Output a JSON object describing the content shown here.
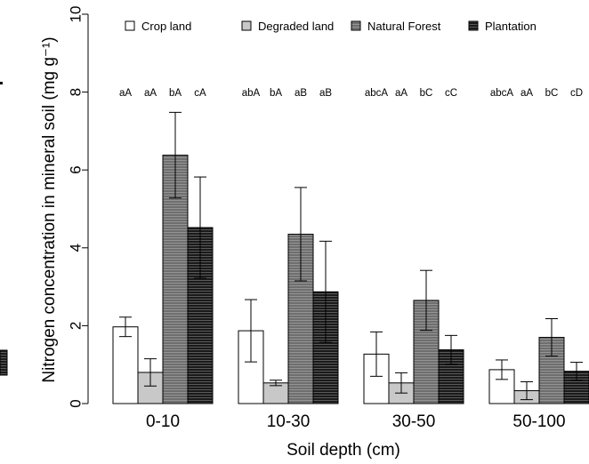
{
  "chart_data": {
    "type": "bar",
    "title": "",
    "xlabel": "Soil depth (cm)",
    "ylabel": "Nitrogen concentration in mineral soil (mg g⁻¹)",
    "ylim": [
      0,
      10
    ],
    "yticks": [
      0,
      2,
      4,
      6,
      8,
      10
    ],
    "grid": false,
    "legend_position": "top",
    "categories": [
      "0-10",
      "10-30",
      "30-50",
      "50-100"
    ],
    "series": [
      {
        "name": "Crop land",
        "fill": "#ffffff",
        "hatch": false,
        "values": [
          1.97,
          1.87,
          1.27,
          0.87
        ],
        "error": [
          0.25,
          0.8,
          0.57,
          0.25
        ],
        "labels": [
          "aA",
          "abA",
          "abcA",
          "abcA"
        ]
      },
      {
        "name": "Degraded land",
        "fill": "#c8c8c8",
        "hatch": false,
        "values": [
          0.8,
          0.53,
          0.53,
          0.33
        ],
        "error": [
          0.35,
          0.07,
          0.26,
          0.23
        ],
        "labels": [
          "aA",
          "bA",
          "aA",
          "aA"
        ]
      },
      {
        "name": "Natural Forest",
        "fill": "#6e6e6e",
        "hatch": true,
        "values": [
          6.38,
          4.35,
          2.65,
          1.7
        ],
        "error": [
          1.1,
          1.2,
          0.77,
          0.48
        ],
        "labels": [
          "bA",
          "aB",
          "bC",
          "bC"
        ]
      },
      {
        "name": "Plantation",
        "fill": "#1a1a1a",
        "hatch": true,
        "values": [
          4.52,
          2.87,
          1.38,
          0.83
        ],
        "error": [
          1.3,
          1.3,
          0.37,
          0.23
        ],
        "labels": [
          "cA",
          "aB",
          "cC",
          "cD"
        ]
      }
    ]
  }
}
